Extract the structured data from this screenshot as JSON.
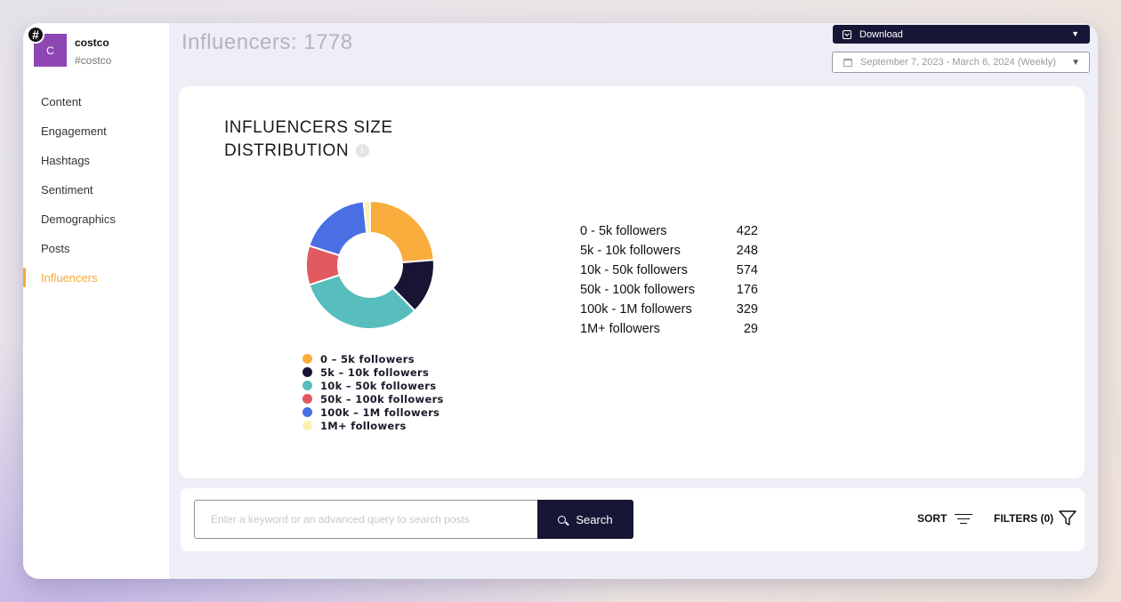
{
  "brand": {
    "badge": "#",
    "avatar_letter": "C",
    "name": "costco",
    "handle": "#costco"
  },
  "sidebar": {
    "items": [
      {
        "label": "Content",
        "active": false
      },
      {
        "label": "Engagement",
        "active": false
      },
      {
        "label": "Hashtags",
        "active": false
      },
      {
        "label": "Sentiment",
        "active": false
      },
      {
        "label": "Demographics",
        "active": false
      },
      {
        "label": "Posts",
        "active": false
      },
      {
        "label": "Influencers",
        "active": true
      }
    ]
  },
  "header": {
    "title": "Influencers: 1778",
    "download_label": "Download",
    "date_range": "September 7, 2023 - March 6, 2024 (Weekly)"
  },
  "card": {
    "title_line1": "INFLUENCERS SIZE",
    "title_line2": "DISTRIBUTION",
    "info_icon": "i"
  },
  "chart_data": {
    "type": "pie",
    "donut": true,
    "categories": [
      "0 - 5k followers",
      "5k - 10k followers",
      "10k - 50k followers",
      "50k - 100k followers",
      "100k - 1M followers",
      "1M+ followers"
    ],
    "values": [
      422,
      248,
      574,
      176,
      329,
      29
    ],
    "colors": [
      "#f8ad3c",
      "#171533",
      "#58bdbd",
      "#e15a5f",
      "#4a6ee3",
      "#fdf0b3"
    ],
    "legend": [
      "0 - 5k followers",
      "5k - 10k followers",
      "10k - 50k followers",
      "50k - 100k followers",
      "100k - 1M followers",
      "1M+ followers"
    ],
    "legend_position": "bottom"
  },
  "stats": [
    {
      "label": "0 - 5k followers",
      "value": "422"
    },
    {
      "label": "5k - 10k followers",
      "value": "248"
    },
    {
      "label": "10k - 50k followers",
      "value": "574"
    },
    {
      "label": "50k - 100k followers",
      "value": "176"
    },
    {
      "label": "100k - 1M followers",
      "value": "329"
    },
    {
      "label": "1M+ followers",
      "value": "29"
    }
  ],
  "search": {
    "placeholder": "Enter a keyword or an advanced query to search posts",
    "button_label": "Search",
    "sort_label": "SORT",
    "filters_label": "FILTERS (0)"
  }
}
